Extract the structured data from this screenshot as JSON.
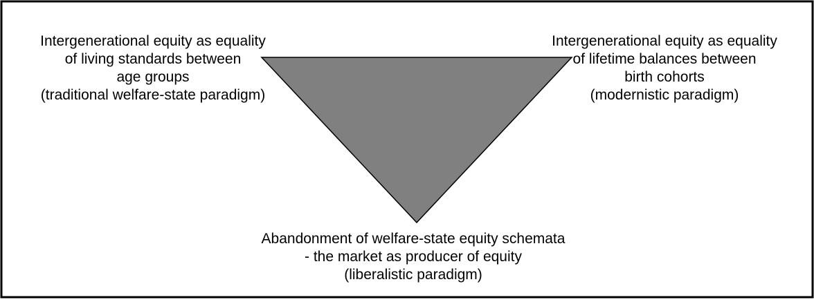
{
  "nodes": [
    {
      "lines": [
        "Intergenerational equity as equality",
        "of living standards between",
        "age groups",
        "(traditional welfare-state paradigm)"
      ]
    },
    {
      "lines": [
        "Intergenerational equity as equality",
        "of lifetime balances between",
        "birth cohorts",
        "(modernistic paradigm)"
      ]
    },
    {
      "lines": [
        "Abandonment of welfare-state equity schemata",
        "- the market as producer of equity",
        "(liberalistic paradigm)"
      ]
    }
  ]
}
